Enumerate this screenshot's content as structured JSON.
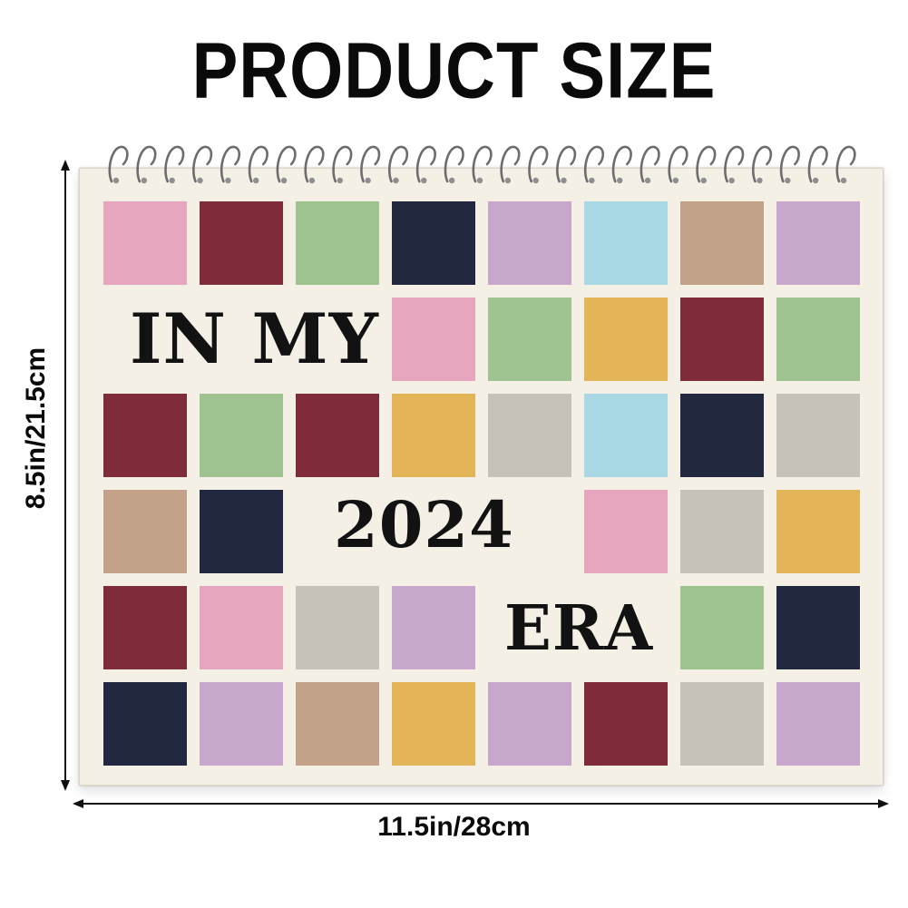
{
  "header": {
    "title": "PRODUCT SIZE"
  },
  "calendar": {
    "cover_words": {
      "line1": "IN MY",
      "line2": "2024",
      "line3": "ERA"
    },
    "colors": {
      "P": "#e6a6bd",
      "R": "#7f2b39",
      "G": "#9fc391",
      "N": "#22283f",
      "L": "#c7a8cc",
      "B": "#a9d8e5",
      "T": "#c2a288",
      "Y": "#e3b558",
      "S": "#c6c2b9"
    },
    "grid": [
      [
        "P",
        "R",
        "G",
        "N",
        "L",
        "B",
        "T",
        "L"
      ],
      [
        "",
        "",
        "",
        "P",
        "G",
        "Y",
        "R",
        "G"
      ],
      [
        "R",
        "G",
        "R",
        "Y",
        "S",
        "B",
        "N",
        "S"
      ],
      [
        "T",
        "N",
        "",
        "",
        "",
        "P",
        "S",
        "Y"
      ],
      [
        "R",
        "P",
        "S",
        "L",
        "",
        "",
        "G",
        "N"
      ],
      [
        "N",
        "L",
        "T",
        "Y",
        "L",
        "R",
        "S",
        "L"
      ]
    ]
  },
  "dimensions": {
    "width_label": "11.5in/28cm",
    "height_label": "8.5in/21.5cm"
  }
}
